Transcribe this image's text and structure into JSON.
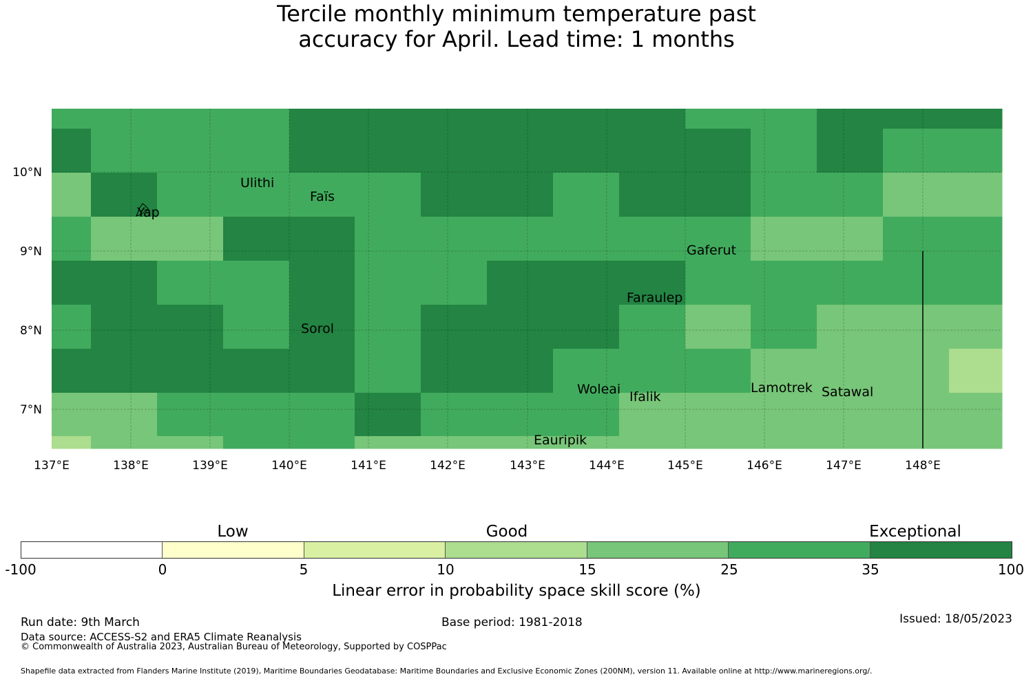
{
  "title": {
    "line1": "Tercile monthly minimum temperature past",
    "line2": "accuracy for April. Lead time: 1 months"
  },
  "map": {
    "lon_labels": [
      "137°E",
      "138°E",
      "139°E",
      "140°E",
      "141°E",
      "142°E",
      "143°E",
      "144°E",
      "145°E",
      "146°E",
      "147°E",
      "148°E"
    ],
    "lat_labels": [
      "10°N",
      "9°N",
      "8°N",
      "7°N"
    ],
    "extent": {
      "lon_min": 137.0,
      "lon_max": 149.0,
      "lat_min": 6.5,
      "lat_max": 10.8
    },
    "cell_size_deg": 0.833,
    "palette": {
      "exceptional": "#238443",
      "good_high": "#41ab5d",
      "good_mid": "#78c679",
      "good_low": "#addd8e",
      "light": "#d9f0a3",
      "low": "#ffffcc",
      "none": "#ffffff"
    },
    "place_labels": [
      {
        "name": "Ulithi",
        "lon": 139.7,
        "lat": 10.0
      },
      {
        "name": "Faïs",
        "lon": 140.5,
        "lat": 9.76
      },
      {
        "name": "Yap",
        "lon": 138.1,
        "lat": 9.5
      },
      {
        "name": "Gaferut",
        "lon": 145.4,
        "lat": 9.0
      },
      {
        "name": "Faraulep",
        "lon": 144.5,
        "lat": 8.6
      },
      {
        "name": "Sorol",
        "lon": 140.4,
        "lat": 8.1
      },
      {
        "name": "Woleai",
        "lon": 143.9,
        "lat": 7.35
      },
      {
        "name": "Ifalik",
        "lon": 144.45,
        "lat": 7.25
      },
      {
        "name": "Lamotrek",
        "lon": 146.3,
        "lat": 7.45
      },
      {
        "name": "Satawal",
        "lon": 147.0,
        "lat": 7.35
      },
      {
        "name": "Eauripik",
        "lon": 143.1,
        "lat": 6.7
      }
    ]
  },
  "colorbar": {
    "categories": [
      {
        "label": "Low"
      },
      {
        "label": "Good"
      },
      {
        "label": "Exceptional"
      }
    ],
    "ticks": [
      "-100",
      "0",
      "5",
      "10",
      "15",
      "25",
      "35",
      "100"
    ],
    "colors": [
      "#ffffff",
      "#ffffcc",
      "#d9f0a3",
      "#addd8e",
      "#78c679",
      "#41ab5d",
      "#238443"
    ],
    "label": "Linear error in probability space skill score (%)"
  },
  "footer": {
    "run_date": "Run date: 9th March",
    "base_period": "Base period: 1981-2018",
    "issued": "Issued: 18/05/2023",
    "data_source": "Data source: ACCESS-S2 and ERA5 Climate Reanalysis",
    "copyright": "© Commonwealth of Australia 2023, Australian Bureau of Meteorology, Supported by COSPPac",
    "shapefile": "Shapefile data extracted from Flanders Marine Institute (2019), Maritime Boundaries Geodatabase: Maritime Boundaries and Exclusive Economic Zones (200NM), version 11. Available online at http://www.marineregions.org/."
  }
}
